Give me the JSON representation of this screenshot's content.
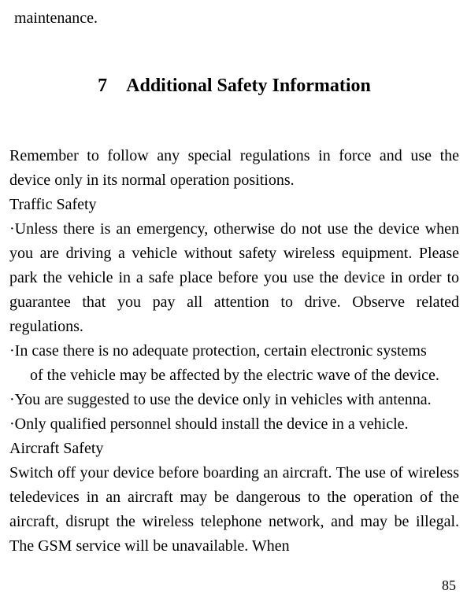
{
  "fragment_top": "maintenance.",
  "heading": {
    "number": "7",
    "title": "Additional Safety Information"
  },
  "lines": [
    {
      "text": "Remember to follow any special regulations in force and use the device only in its normal operation positions.",
      "indent": false
    },
    {
      "text": "Traffic Safety",
      "indent": false
    },
    {
      "text": "·Unless there is an emergency, otherwise do not use the device when you are driving a vehicle without safety wireless equipment. Please park the vehicle in a safe place before you use the device in order to guarantee that you pay all attention to drive. Observe related regulations.",
      "indent": false
    },
    {
      "text": "·In case there is no adequate protection, certain electronic systems",
      "indent": false
    },
    {
      "text": "of the vehicle may be affected by the electric wave of the device.",
      "indent": true
    },
    {
      "text": "·You are suggested to use the device only in vehicles with antenna.",
      "indent": false
    },
    {
      "text": "·Only qualified personnel should install the device in a vehicle.",
      "indent": false
    },
    {
      "text": "Aircraft Safety",
      "indent": false
    },
    {
      "text": "Switch off your device before boarding an aircraft. The use of wireless teledevices in an aircraft may be dangerous to the operation of the aircraft, disrupt the wireless telephone network, and may be illegal. The GSM service will be unavailable. When",
      "indent": false
    }
  ],
  "page_number": "85"
}
